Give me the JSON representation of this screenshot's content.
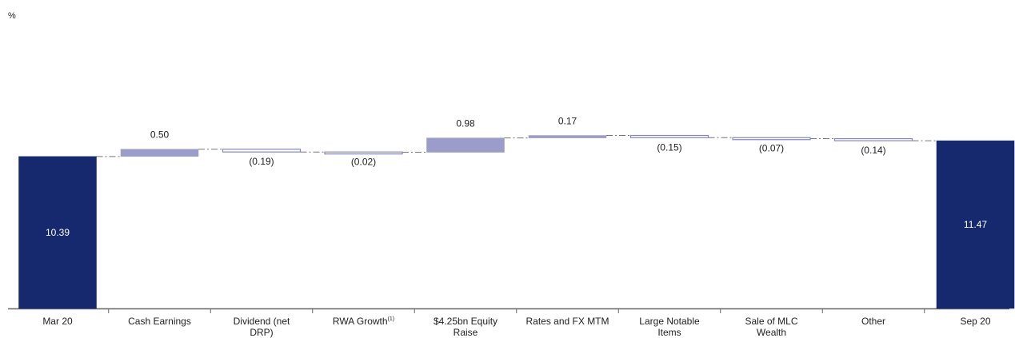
{
  "chart_data": {
    "type": "bar",
    "subtype": "waterfall",
    "unit_label": "%",
    "title": "",
    "xlabel": "",
    "ylabel": "",
    "ylim": [
      0,
      12.3
    ],
    "grid": false,
    "legend": "none",
    "categories": [
      {
        "label": "Mar 20",
        "sup": "",
        "value": 10.39,
        "kind": "total",
        "value_label": "10.39"
      },
      {
        "label": "Cash Earnings",
        "sup": "",
        "value": 0.5,
        "kind": "increase",
        "value_label": "0.50"
      },
      {
        "label": "Dividend (net DRP)",
        "sup": "",
        "value": -0.19,
        "kind": "decrease",
        "value_label": "(0.19)"
      },
      {
        "label": "RWA Growth",
        "sup": "(1)",
        "value": -0.02,
        "kind": "decrease",
        "value_label": "(0.02)"
      },
      {
        "label": "$4.25bn Equity Raise",
        "sup": "",
        "value": 0.98,
        "kind": "increase",
        "value_label": "0.98"
      },
      {
        "label": "Rates and FX MTM",
        "sup": "",
        "value": 0.17,
        "kind": "increase",
        "value_label": "0.17"
      },
      {
        "label": "Large Notable Items",
        "sup": "",
        "value": -0.15,
        "kind": "decrease",
        "value_label": "(0.15)"
      },
      {
        "label": "Sale of MLC Wealth",
        "sup": "",
        "value": -0.07,
        "kind": "decrease",
        "value_label": "(0.07)"
      },
      {
        "label": "Other",
        "sup": "",
        "value": -0.14,
        "kind": "decrease",
        "value_label": "(0.14)"
      },
      {
        "label": "Sep 20",
        "sup": "",
        "value": 11.47,
        "kind": "total",
        "value_label": "11.47"
      }
    ],
    "colors": {
      "total": "#16286e",
      "increase": "#9c9cca",
      "decrease_fill": "#ffffff",
      "decrease_stroke": "#8585c0",
      "connector": "#777777",
      "axis": "#666666",
      "text": "#222222",
      "inbar_text": "#ffffff"
    }
  }
}
